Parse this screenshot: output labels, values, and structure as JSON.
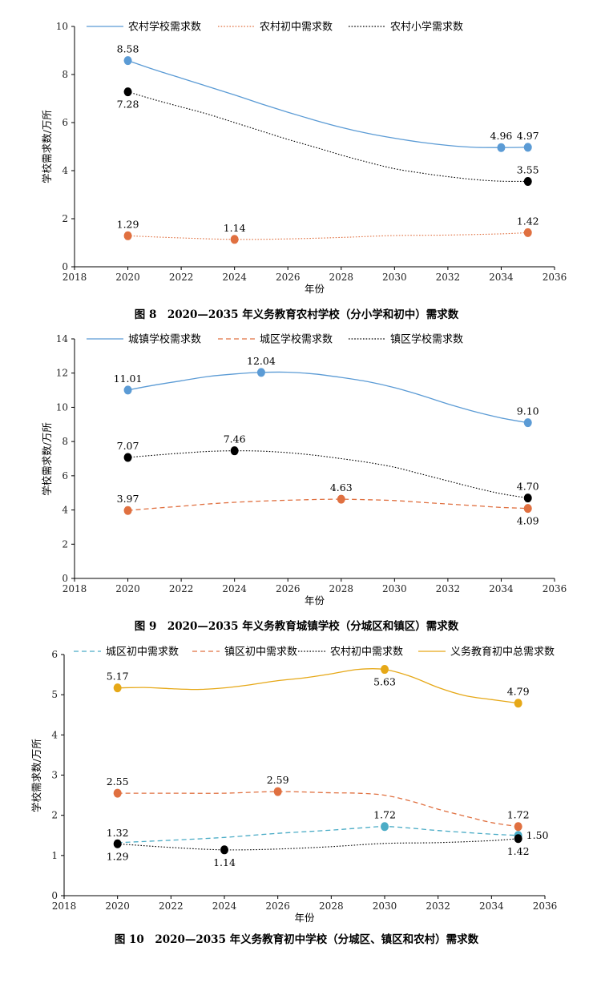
{
  "chart_data": [
    {
      "type": "line",
      "xlabel": "年份",
      "ylabel": "学校需求数/万所",
      "xlim": [
        2018,
        2036
      ],
      "ylim": [
        0,
        10
      ],
      "xticks": [
        "2018",
        "2020",
        "2022",
        "2024",
        "2026",
        "2028",
        "2030",
        "2032",
        "2034",
        "2036"
      ],
      "yticks": [
        "0",
        "2",
        "4",
        "6",
        "8",
        "10"
      ],
      "legend_position": "top",
      "caption": "图 8　2020—2035 年义务教育农村学校（分小学和初中）需求数",
      "series": [
        {
          "name": "农村学校需求数",
          "color": "#5b9bd5",
          "dash": "solid",
          "x": [
            2020,
            2021,
            2022,
            2023,
            2024,
            2025,
            2026,
            2027,
            2028,
            2029,
            2030,
            2031,
            2032,
            2033,
            2034,
            2035
          ],
          "y": [
            8.58,
            8.2,
            7.85,
            7.5,
            7.15,
            6.78,
            6.43,
            6.1,
            5.8,
            5.55,
            5.35,
            5.18,
            5.05,
            4.97,
            4.96,
            4.97
          ],
          "markers": [
            {
              "x": 2020,
              "y": 8.58,
              "label": "8.58",
              "pos": "above"
            },
            {
              "x": 2034,
              "y": 4.96,
              "label": "4.96",
              "pos": "above"
            },
            {
              "x": 2035,
              "y": 4.97,
              "label": "4.97",
              "pos": "above"
            }
          ]
        },
        {
          "name": "农村初中需求数",
          "color": "#e07040",
          "dash": "dotted",
          "x": [
            2020,
            2022,
            2024,
            2026,
            2028,
            2030,
            2032,
            2034,
            2035
          ],
          "y": [
            1.29,
            1.2,
            1.14,
            1.16,
            1.22,
            1.3,
            1.32,
            1.37,
            1.42
          ],
          "markers": [
            {
              "x": 2020,
              "y": 1.29,
              "label": "1.29",
              "pos": "above"
            },
            {
              "x": 2024,
              "y": 1.14,
              "label": "1.14",
              "pos": "above"
            },
            {
              "x": 2035,
              "y": 1.42,
              "label": "1.42",
              "pos": "above"
            }
          ]
        },
        {
          "name": "农村小学需求数",
          "color": "#000000",
          "dash": "dotted",
          "x": [
            2020,
            2021,
            2022,
            2023,
            2024,
            2025,
            2026,
            2027,
            2028,
            2029,
            2030,
            2031,
            2032,
            2033,
            2034,
            2035
          ],
          "y": [
            7.28,
            6.95,
            6.65,
            6.35,
            6.0,
            5.65,
            5.3,
            4.98,
            4.65,
            4.35,
            4.08,
            3.9,
            3.75,
            3.63,
            3.56,
            3.55
          ],
          "markers": [
            {
              "x": 2020,
              "y": 7.28,
              "label": "7.28",
              "pos": "below"
            },
            {
              "x": 2035,
              "y": 3.55,
              "label": "3.55",
              "pos": "above"
            }
          ]
        }
      ]
    },
    {
      "type": "line",
      "xlabel": "年份",
      "ylabel": "学校需求数/万所",
      "xlim": [
        2018,
        2036
      ],
      "ylim": [
        0,
        14
      ],
      "xticks": [
        "2018",
        "2020",
        "2022",
        "2024",
        "2026",
        "2028",
        "2030",
        "2032",
        "2034",
        "2036"
      ],
      "yticks": [
        "0",
        "2",
        "4",
        "6",
        "8",
        "10",
        "12",
        "14"
      ],
      "legend_position": "top",
      "caption": "图 9　2020—2035 年义务教育城镇学校（分城区和镇区）需求数",
      "series": [
        {
          "name": "城镇学校需求数",
          "color": "#5b9bd5",
          "dash": "solid",
          "x": [
            2020,
            2021,
            2022,
            2023,
            2024,
            2025,
            2026,
            2027,
            2028,
            2029,
            2030,
            2031,
            2032,
            2033,
            2034,
            2035
          ],
          "y": [
            11.01,
            11.3,
            11.55,
            11.8,
            11.95,
            12.04,
            12.05,
            11.95,
            11.75,
            11.5,
            11.15,
            10.7,
            10.2,
            9.75,
            9.38,
            9.1
          ],
          "markers": [
            {
              "x": 2020,
              "y": 11.01,
              "label": "11.01",
              "pos": "above"
            },
            {
              "x": 2025,
              "y": 12.04,
              "label": "12.04",
              "pos": "above"
            },
            {
              "x": 2035,
              "y": 9.1,
              "label": "9.10",
              "pos": "above"
            }
          ]
        },
        {
          "name": "城区学校需求数",
          "color": "#e07040",
          "dash": "dashed",
          "x": [
            2020,
            2021,
            2022,
            2023,
            2024,
            2025,
            2026,
            2027,
            2028,
            2029,
            2030,
            2031,
            2032,
            2033,
            2034,
            2035
          ],
          "y": [
            3.97,
            4.1,
            4.22,
            4.35,
            4.45,
            4.52,
            4.57,
            4.61,
            4.63,
            4.6,
            4.55,
            4.45,
            4.35,
            4.25,
            4.15,
            4.09
          ],
          "markers": [
            {
              "x": 2020,
              "y": 3.97,
              "label": "3.97",
              "pos": "above"
            },
            {
              "x": 2028,
              "y": 4.63,
              "label": "4.63",
              "pos": "above"
            },
            {
              "x": 2035,
              "y": 4.09,
              "label": "4.09",
              "pos": "below"
            }
          ]
        },
        {
          "name": "镇区学校需求数",
          "color": "#000000",
          "dash": "dotted",
          "x": [
            2020,
            2021,
            2022,
            2023,
            2024,
            2025,
            2026,
            2027,
            2028,
            2029,
            2030,
            2031,
            2032,
            2033,
            2034,
            2035
          ],
          "y": [
            7.07,
            7.2,
            7.32,
            7.42,
            7.46,
            7.44,
            7.35,
            7.2,
            7.0,
            6.78,
            6.5,
            6.1,
            5.7,
            5.3,
            4.95,
            4.7
          ],
          "markers": [
            {
              "x": 2020,
              "y": 7.07,
              "label": "7.07",
              "pos": "above"
            },
            {
              "x": 2024,
              "y": 7.46,
              "label": "7.46",
              "pos": "above"
            },
            {
              "x": 2035,
              "y": 4.7,
              "label": "4.70",
              "pos": "above"
            }
          ]
        }
      ]
    },
    {
      "type": "line",
      "xlabel": "年份",
      "ylabel": "学校需求数/万所",
      "xlim": [
        2018,
        2036
      ],
      "ylim": [
        0,
        6
      ],
      "xticks": [
        "2018",
        "2020",
        "2022",
        "2024",
        "2026",
        "2028",
        "2030",
        "2032",
        "2034",
        "2036"
      ],
      "yticks": [
        "0",
        "1",
        "2",
        "3",
        "4",
        "5",
        "6"
      ],
      "legend_position": "top",
      "caption": "图 10　2020—2035 年义务教育初中学校（分城区、镇区和农村）需求数",
      "series": [
        {
          "name": "城区初中需求数",
          "color": "#4bacc6",
          "dash": "dashed",
          "x": [
            2020,
            2022,
            2024,
            2026,
            2028,
            2029,
            2030,
            2031,
            2032,
            2034,
            2035
          ],
          "y": [
            1.32,
            1.38,
            1.45,
            1.55,
            1.63,
            1.68,
            1.72,
            1.68,
            1.62,
            1.53,
            1.5
          ],
          "markers": [
            {
              "x": 2030,
              "y": 1.72,
              "label": "1.72",
              "pos": "above"
            },
            {
              "x": 2035,
              "y": 1.5,
              "label": "1.50",
              "pos": "right"
            }
          ],
          "extra_labels": [
            {
              "x": 2020,
              "y": 1.32,
              "label": "1.32",
              "pos": "above"
            }
          ]
        },
        {
          "name": "镇区初中需求数",
          "color": "#e07040",
          "dash": "dashed",
          "x": [
            2020,
            2022,
            2024,
            2026,
            2028,
            2029,
            2030,
            2031,
            2032,
            2033,
            2034,
            2035
          ],
          "y": [
            2.55,
            2.55,
            2.55,
            2.59,
            2.56,
            2.55,
            2.5,
            2.35,
            2.15,
            1.98,
            1.82,
            1.72
          ],
          "markers": [
            {
              "x": 2020,
              "y": 2.55,
              "label": "2.55",
              "pos": "above"
            },
            {
              "x": 2026,
              "y": 2.59,
              "label": "2.59",
              "pos": "above"
            },
            {
              "x": 2035,
              "y": 1.72,
              "label": "1.72",
              "pos": "above"
            }
          ]
        },
        {
          "name": "农村初中需求数",
          "color": "#000000",
          "dash": "dotted",
          "x": [
            2020,
            2022,
            2024,
            2026,
            2028,
            2030,
            2032,
            2034,
            2035
          ],
          "y": [
            1.29,
            1.2,
            1.14,
            1.16,
            1.22,
            1.3,
            1.32,
            1.37,
            1.42
          ],
          "markers": [
            {
              "x": 2020,
              "y": 1.29,
              "label": "1.29",
              "pos": "below"
            },
            {
              "x": 2024,
              "y": 1.14,
              "label": "1.14",
              "pos": "below"
            },
            {
              "x": 2035,
              "y": 1.42,
              "label": "1.42",
              "pos": "below"
            }
          ]
        },
        {
          "name": "义务教育初中总需求数",
          "color": "#e6a817",
          "dash": "solid",
          "x": [
            2020,
            2021,
            2022,
            2023,
            2024,
            2025,
            2026,
            2027,
            2028,
            2029,
            2030,
            2031,
            2032,
            2033,
            2034,
            2035
          ],
          "y": [
            5.17,
            5.18,
            5.15,
            5.13,
            5.17,
            5.25,
            5.35,
            5.42,
            5.52,
            5.63,
            5.63,
            5.45,
            5.18,
            4.98,
            4.88,
            4.79
          ],
          "markers": [
            {
              "x": 2020,
              "y": 5.17,
              "label": "5.17",
              "pos": "above"
            },
            {
              "x": 2030,
              "y": 5.63,
              "label": "5.63",
              "pos": "below"
            },
            {
              "x": 2035,
              "y": 4.79,
              "label": "4.79",
              "pos": "above"
            }
          ]
        }
      ]
    }
  ]
}
